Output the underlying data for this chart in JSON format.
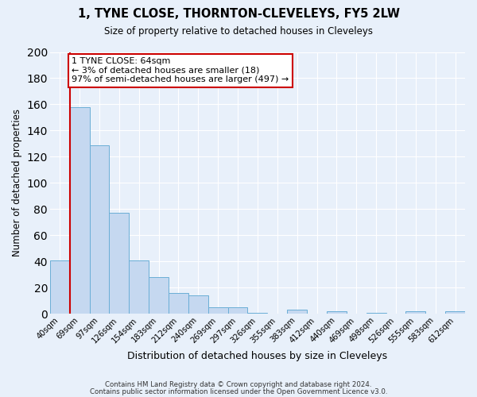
{
  "title": "1, TYNE CLOSE, THORNTON-CLEVELEYS, FY5 2LW",
  "subtitle": "Size of property relative to detached houses in Cleveleys",
  "xlabel": "Distribution of detached houses by size in Cleveleys",
  "ylabel": "Number of detached properties",
  "bar_labels": [
    "40sqm",
    "69sqm",
    "97sqm",
    "126sqm",
    "154sqm",
    "183sqm",
    "212sqm",
    "240sqm",
    "269sqm",
    "297sqm",
    "326sqm",
    "355sqm",
    "383sqm",
    "412sqm",
    "440sqm",
    "469sqm",
    "498sqm",
    "526sqm",
    "555sqm",
    "583sqm",
    "612sqm"
  ],
  "bar_values": [
    41,
    158,
    129,
    77,
    41,
    28,
    16,
    14,
    5,
    5,
    1,
    0,
    3,
    0,
    2,
    0,
    1,
    0,
    2,
    0,
    2
  ],
  "bar_color": "#c5d8f0",
  "bar_edge_color": "#6aaed6",
  "background_color": "#e8f0fa",
  "grid_color": "#ffffff",
  "ylim": [
    0,
    200
  ],
  "yticks": [
    0,
    20,
    40,
    60,
    80,
    100,
    120,
    140,
    160,
    180,
    200
  ],
  "vline_color": "#cc0000",
  "annotation_text": "1 TYNE CLOSE: 64sqm\n← 3% of detached houses are smaller (18)\n97% of semi-detached houses are larger (497) →",
  "annotation_box_color": "#ffffff",
  "annotation_box_edge": "#cc0000",
  "footnote1": "Contains HM Land Registry data © Crown copyright and database right 2024.",
  "footnote2": "Contains public sector information licensed under the Open Government Licence v3.0."
}
